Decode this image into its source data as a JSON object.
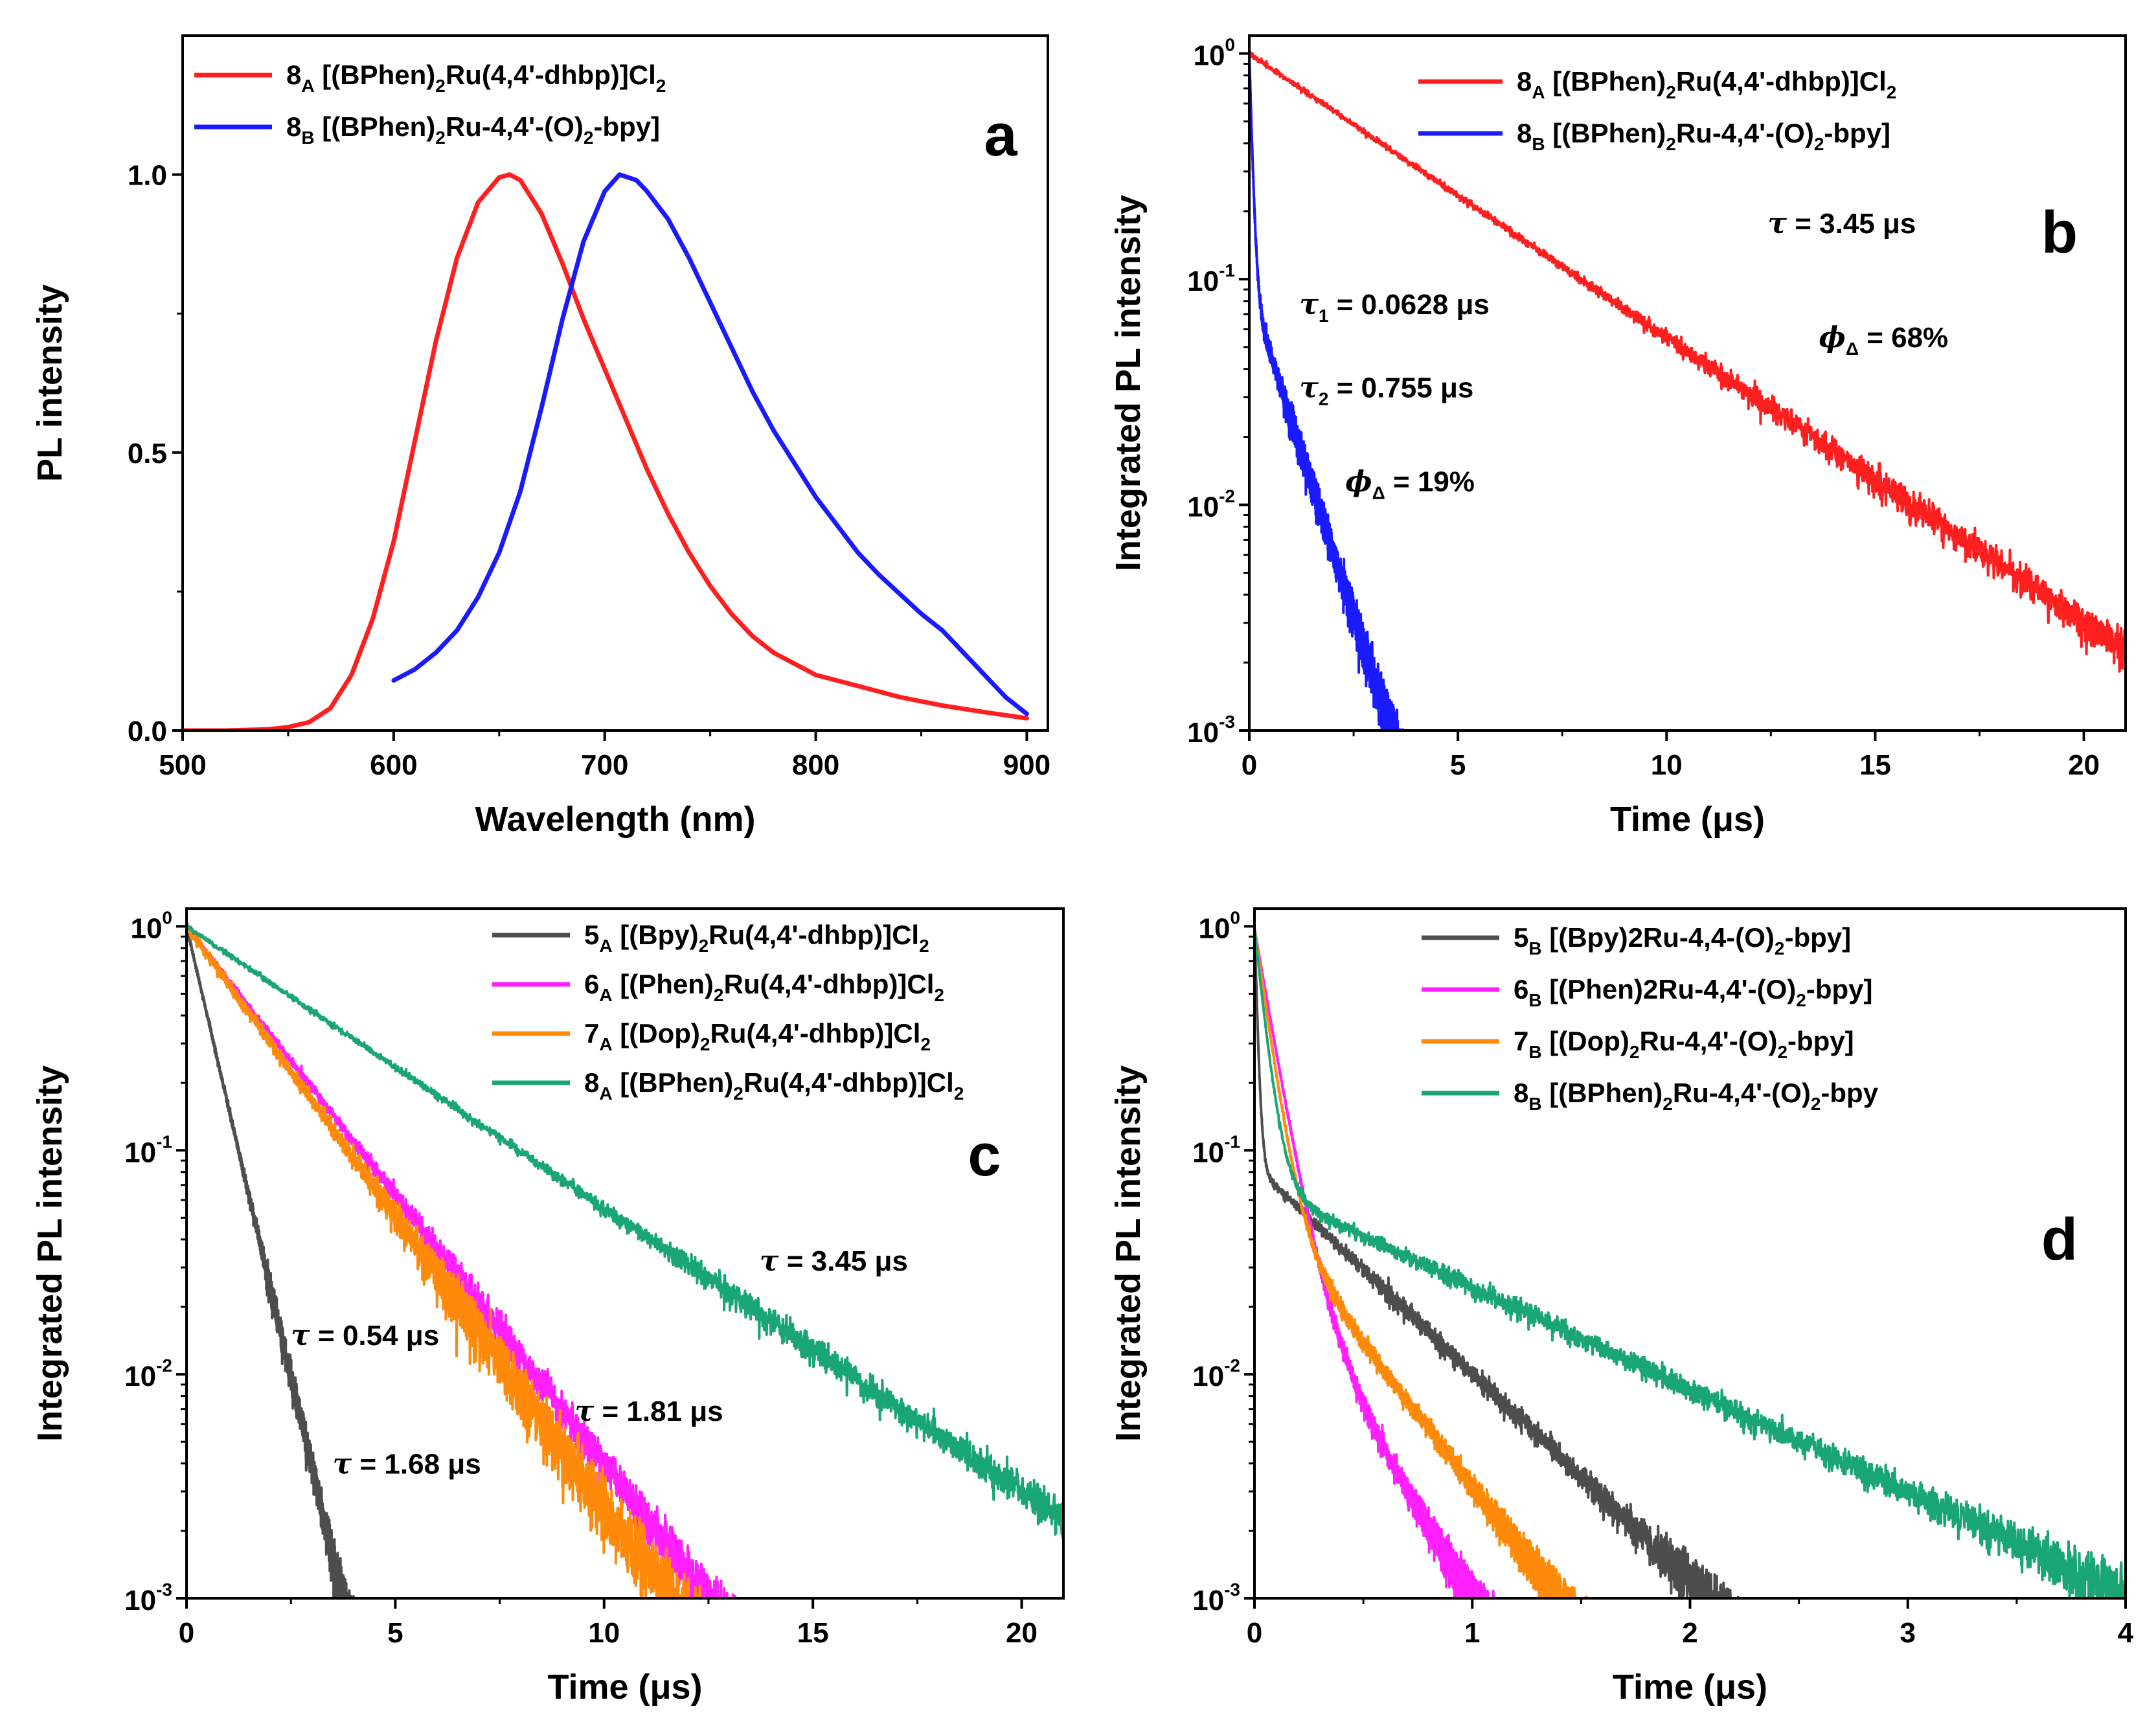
{
  "chart_data": [
    {
      "panel": "a",
      "type": "line",
      "xlabel": "Wavelength (nm)",
      "ylabel": "PL intensity",
      "xlim": [
        500,
        910
      ],
      "ylim": [
        0,
        1.25
      ],
      "yscale": "linear",
      "xticks": [
        500,
        600,
        700,
        800,
        900
      ],
      "xtick_labels": [
        "500",
        "600",
        "700",
        "800",
        "900"
      ],
      "yticks": [
        0,
        0.5,
        1.0
      ],
      "ytick_labels": [
        "0.0",
        "0.5",
        "1.0"
      ],
      "legend_position": "top-left",
      "series": [
        {
          "id": "8A",
          "name": "8A [(BPhen)2Ru(4,4'-dhbp)]Cl2",
          "color": "#ff1f1f",
          "legend_parts": [
            [
              "8",
              "n"
            ],
            [
              "A",
              "sub"
            ],
            [
              " [(BPhen)",
              "n"
            ],
            [
              "2",
              "sub"
            ],
            [
              "Ru(4,4'-dhbp)]Cl",
              "n"
            ],
            [
              "2",
              "sub"
            ]
          ],
          "x": [
            500,
            520,
            540,
            550,
            560,
            570,
            580,
            590,
            600,
            610,
            620,
            630,
            640,
            650,
            655,
            660,
            670,
            680,
            690,
            700,
            710,
            720,
            730,
            740,
            750,
            760,
            770,
            780,
            790,
            800,
            820,
            840,
            860,
            880,
            900
          ],
          "y": [
            0,
            0,
            0.002,
            0.006,
            0.015,
            0.04,
            0.1,
            0.2,
            0.34,
            0.52,
            0.7,
            0.85,
            0.95,
            0.995,
            1.0,
            0.99,
            0.93,
            0.84,
            0.74,
            0.65,
            0.56,
            0.47,
            0.39,
            0.32,
            0.26,
            0.21,
            0.17,
            0.14,
            0.12,
            0.1,
            0.08,
            0.06,
            0.045,
            0.033,
            0.022
          ]
        },
        {
          "id": "8B",
          "name": "8B [(BPhen)2Ru-4,4'-(O)2-bpy]",
          "color": "#1a1aff",
          "legend_parts": [
            [
              "8",
              "n"
            ],
            [
              "B",
              "sub"
            ],
            [
              " [(BPhen)",
              "n"
            ],
            [
              "2",
              "sub"
            ],
            [
              "Ru-4,4'-(O)",
              "n"
            ],
            [
              "2",
              "sub"
            ],
            [
              "-bpy]",
              "n"
            ]
          ],
          "x": [
            600,
            610,
            620,
            630,
            640,
            650,
            660,
            670,
            680,
            690,
            700,
            707,
            715,
            720,
            730,
            740,
            750,
            760,
            770,
            780,
            790,
            800,
            810,
            820,
            830,
            840,
            850,
            860,
            870,
            880,
            890,
            900
          ],
          "y": [
            0.09,
            0.11,
            0.14,
            0.18,
            0.24,
            0.32,
            0.43,
            0.58,
            0.74,
            0.88,
            0.97,
            1.0,
            0.99,
            0.97,
            0.92,
            0.85,
            0.77,
            0.69,
            0.61,
            0.54,
            0.48,
            0.42,
            0.37,
            0.32,
            0.28,
            0.245,
            0.21,
            0.18,
            0.14,
            0.1,
            0.06,
            0.03
          ]
        }
      ]
    },
    {
      "panel": "b",
      "type": "line",
      "xlabel": "Time (μs)",
      "ylabel": "Integrated PL intensity",
      "xlim": [
        0,
        21
      ],
      "ylim": [
        0.001,
        1.2
      ],
      "yscale": "log",
      "xticks": [
        0,
        5,
        10,
        15,
        20
      ],
      "xtick_labels": [
        "0",
        "5",
        "10",
        "15",
        "20"
      ],
      "yticks": [
        1,
        0.1,
        0.01,
        0.001
      ],
      "ytick_labels": [
        [
          "10",
          "0"
        ],
        [
          "10",
          "-1"
        ],
        [
          "10",
          "-2"
        ],
        [
          "10",
          "-3"
        ]
      ],
      "legend_position": "top-right",
      "series": [
        {
          "id": "8A",
          "name": "8A [(BPhen)2Ru(4,4'-dhbp)]Cl2",
          "color": "#ff1f1f",
          "legend_parts": [
            [
              "8",
              "n"
            ],
            [
              "A",
              "sub"
            ],
            [
              " [(BPhen)",
              "n"
            ],
            [
              "2",
              "sub"
            ],
            [
              "Ru(4,4'-dhbp)]Cl",
              "n"
            ],
            [
              "2",
              "sub"
            ]
          ],
          "model": {
            "kind": "exp",
            "tau": 3.45,
            "t_end": 21,
            "noise": 0.12,
            "floor": 0.0025
          }
        },
        {
          "id": "8B",
          "name": "8B [(BPhen)2Ru-4,4'-(O)2-bpy]",
          "color": "#1a1aff",
          "legend_parts": [
            [
              "8",
              "n"
            ],
            [
              "B",
              "sub"
            ],
            [
              " [(BPhen)",
              "n"
            ],
            [
              "2",
              "sub"
            ],
            [
              "Ru-4,4'-(O)",
              "n"
            ],
            [
              "2",
              "sub"
            ],
            [
              "-bpy]",
              "n"
            ]
          ],
          "model": {
            "kind": "biexp",
            "a1": 0.91,
            "tau1": 0.0628,
            "a2": 0.09,
            "tau2": 0.755,
            "t_end": 4.3,
            "noise": 0.15,
            "floor": 0.001
          }
        }
      ],
      "annotations": [
        {
          "parts": [
            [
              "τ",
              "i"
            ],
            [
              " = 3.45 μs",
              "n"
            ]
          ],
          "color": "#ff1f1f",
          "x": 14.2,
          "y": 0.16,
          "anchor": "middle"
        },
        {
          "parts": [
            [
              "ϕ",
              "i"
            ],
            [
              "Δ",
              "sub"
            ],
            [
              " = 68%",
              "n"
            ]
          ],
          "color": "#ff1f1f",
          "x": 15.2,
          "y": 0.05,
          "anchor": "middle"
        },
        {
          "parts": [
            [
              "τ",
              "i"
            ],
            [
              "1",
              "sub"
            ],
            [
              " = 0.0628 μs",
              "n"
            ]
          ],
          "color": "#1a1aff",
          "x": 1.2,
          "y": 0.07,
          "anchor": "start"
        },
        {
          "parts": [
            [
              "τ",
              "i"
            ],
            [
              "2",
              "sub"
            ],
            [
              " = 0.755 μs",
              "n"
            ]
          ],
          "color": "#1a1aff",
          "x": 1.2,
          "y": 0.03,
          "anchor": "start"
        },
        {
          "parts": [
            [
              "ϕ",
              "i"
            ],
            [
              "Δ",
              "sub"
            ],
            [
              " = 19%",
              "n"
            ]
          ],
          "color": "#1a1aff",
          "x": 2.3,
          "y": 0.0115,
          "anchor": "start"
        }
      ]
    },
    {
      "panel": "c",
      "type": "line",
      "xlabel": "Time (μs)",
      "ylabel": "Integrated PL intensity",
      "xlim": [
        0,
        21
      ],
      "ylim": [
        0.001,
        1.2
      ],
      "yscale": "log",
      "xticks": [
        0,
        5,
        10,
        15,
        20
      ],
      "xtick_labels": [
        "0",
        "5",
        "10",
        "15",
        "20"
      ],
      "yticks": [
        1,
        0.1,
        0.01,
        0.001
      ],
      "ytick_labels": [
        [
          "10",
          "0"
        ],
        [
          "10",
          "-1"
        ],
        [
          "10",
          "-2"
        ],
        [
          "10",
          "-3"
        ]
      ],
      "legend_position": "top-right",
      "series": [
        {
          "id": "5A",
          "name": "5A [(Bpy)2Ru(4,4'-dhbp)]Cl2",
          "color": "#4d4d4d",
          "legend_parts": [
            [
              "5",
              "n"
            ],
            [
              "A",
              "sub"
            ],
            [
              " [(Bpy)",
              "n"
            ],
            [
              "2",
              "sub"
            ],
            [
              "Ru(4,4'-dhbp)]Cl",
              "n"
            ],
            [
              "2",
              "sub"
            ]
          ],
          "model": {
            "kind": "exp",
            "tau": 0.54,
            "t_end": 4.3,
            "noise": 0.12,
            "floor": 0.001
          }
        },
        {
          "id": "6A",
          "name": "6A [(Phen)2Ru(4,4'-dhbp)]Cl2",
          "color": "#ff1fff",
          "legend_parts": [
            [
              "6",
              "n"
            ],
            [
              "A",
              "sub"
            ],
            [
              " [(Phen)",
              "n"
            ],
            [
              "2",
              "sub"
            ],
            [
              "Ru(4,4'-dhbp)]Cl",
              "n"
            ],
            [
              "2",
              "sub"
            ]
          ],
          "model": {
            "kind": "exp",
            "tau": 1.81,
            "t_end": 13.4,
            "noise": 0.16,
            "floor": 0.001
          }
        },
        {
          "id": "7A",
          "name": "7A [(Dop)2Ru(4,4'-dhbp)]Cl2",
          "color": "#ff8a0a",
          "legend_parts": [
            [
              "7",
              "n"
            ],
            [
              "A",
              "sub"
            ],
            [
              " [(Dop)",
              "n"
            ],
            [
              "2",
              "sub"
            ],
            [
              "Ru(4,4'-dhbp)]Cl",
              "n"
            ],
            [
              "2",
              "sub"
            ]
          ],
          "model": {
            "kind": "exp",
            "tau": 1.68,
            "t_end": 13.4,
            "noise": 0.25,
            "floor": 0.001
          }
        },
        {
          "id": "8A",
          "name": "8A [(BPhen)2Ru(4,4'-dhbp)]Cl2",
          "color": "#1aa673",
          "legend_parts": [
            [
              "8",
              "n"
            ],
            [
              "A",
              "sub"
            ],
            [
              " [(BPhen)",
              "n"
            ],
            [
              "2",
              "sub"
            ],
            [
              "Ru(4,4'-dhbp)]Cl",
              "n"
            ],
            [
              "2",
              "sub"
            ]
          ],
          "model": {
            "kind": "exp",
            "tau": 3.45,
            "t_end": 21,
            "noise": 0.12,
            "floor": 0.003
          }
        }
      ],
      "annotations": [
        {
          "parts": [
            [
              "τ",
              "i"
            ],
            [
              " = 3.45 μs",
              "n"
            ]
          ],
          "color": "#11998f",
          "x": 15.5,
          "y": 0.029,
          "anchor": "middle"
        },
        {
          "parts": [
            [
              "τ",
              "i"
            ],
            [
              " = 0.54 μs",
              "n"
            ]
          ],
          "color": "#111111",
          "x": 2.5,
          "y": 0.0135,
          "anchor": "start"
        },
        {
          "parts": [
            [
              "τ",
              "i"
            ],
            [
              " = 1.81 μs",
              "n"
            ]
          ],
          "color": "#ff1fff",
          "x": 9.3,
          "y": 0.0062,
          "anchor": "start"
        },
        {
          "parts": [
            [
              "τ",
              "i"
            ],
            [
              " = 1.68 μs",
              "n"
            ]
          ],
          "color": "#ff8a0a",
          "x": 3.5,
          "y": 0.0036,
          "anchor": "start"
        }
      ]
    },
    {
      "panel": "d",
      "type": "line",
      "xlabel": "Time (μs)",
      "ylabel": "Integrated PL intensity",
      "xlim": [
        0,
        4
      ],
      "ylim": [
        0.001,
        1.2
      ],
      "yscale": "log",
      "xticks": [
        0,
        1,
        2,
        3,
        4
      ],
      "xtick_labels": [
        "0",
        "1",
        "2",
        "3",
        "4"
      ],
      "yticks": [
        1,
        0.1,
        0.01,
        0.001
      ],
      "ytick_labels": [
        [
          "10",
          "0"
        ],
        [
          "10",
          "-1"
        ],
        [
          "10",
          "-2"
        ],
        [
          "10",
          "-3"
        ]
      ],
      "legend_position": "top-right",
      "series": [
        {
          "id": "5B",
          "name": "5B [(Bpy)2Ru-4,4-(O)2-bpy]",
          "color": "#4d4d4d",
          "legend_parts": [
            [
              "5",
              "n"
            ],
            [
              "B",
              "sub"
            ],
            [
              " [(Bpy)2Ru-4,4-(O)",
              "n"
            ],
            [
              "2",
              "sub"
            ],
            [
              "-bpy]",
              "n"
            ]
          ],
          "model": {
            "kind": "biexp",
            "a1": 0.92,
            "tau1": 0.012,
            "a2": 0.085,
            "tau2": 0.47,
            "t_end": 2.72,
            "noise": 0.08,
            "floor": 0.001
          }
        },
        {
          "id": "6B",
          "name": "6B [(Phen)2Ru-4,4'-(O)2-bpy]",
          "color": "#ff1fff",
          "legend_parts": [
            [
              "6",
              "n"
            ],
            [
              "B",
              "sub"
            ],
            [
              " [(Phen)2Ru-4,4'-(O)",
              "n"
            ],
            [
              "2",
              "sub"
            ],
            [
              "-bpy]",
              "n"
            ]
          ],
          "model": {
            "kind": "biexp",
            "a1": 0.94,
            "tau1": 0.075,
            "a2": 0.04,
            "tau2": 0.27,
            "t_end": 1.25,
            "noise": 0.07,
            "floor": 0.001
          }
        },
        {
          "id": "7B",
          "name": "7B [(Dop)2Ru-4,4'-(O)2-bpy]",
          "color": "#ff8a0a",
          "legend_parts": [
            [
              "7",
              "n"
            ],
            [
              "B",
              "sub"
            ],
            [
              " [(Dop)",
              "n"
            ],
            [
              "2",
              "sub"
            ],
            [
              "Ru-4,4'-(O)",
              "n"
            ],
            [
              "2",
              "sub"
            ],
            [
              "-bpy]",
              "n"
            ]
          ],
          "model": {
            "kind": "biexp",
            "a1": 0.93,
            "tau1": 0.06,
            "a2": 0.06,
            "tau2": 0.34,
            "t_end": 1.66,
            "noise": 0.07,
            "floor": 0.001
          }
        },
        {
          "id": "8B",
          "name": "8B [(BPhen)2Ru-4,4'-(O)2-bpy",
          "color": "#1aa673",
          "legend_parts": [
            [
              "8",
              "n"
            ],
            [
              "B",
              "sub"
            ],
            [
              " [(BPhen)",
              "n"
            ],
            [
              "2",
              "sub"
            ],
            [
              "Ru-4,4'-(O)",
              "n"
            ],
            [
              "2",
              "sub"
            ],
            [
              "-bpy",
              "n"
            ]
          ],
          "model": {
            "kind": "biexp",
            "a1": 0.91,
            "tau1": 0.045,
            "a2": 0.07,
            "tau2": 0.95,
            "t_end": 4.0,
            "noise": 0.09,
            "floor": 0.001
          }
        }
      ]
    }
  ]
}
